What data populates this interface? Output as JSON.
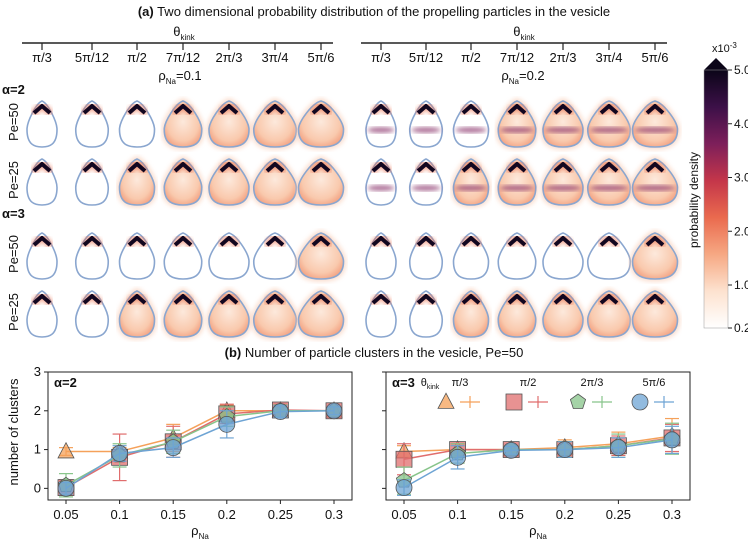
{
  "panel_a": {
    "title_bold": "(a)",
    "title_text": " Two dimensional probability distribution of the propelling particles in the vesicle",
    "theta_label": "θ",
    "theta_sub": "kink",
    "ticks": [
      "π/3",
      "5π/12",
      "π/2",
      "7π/12",
      "2π/3",
      "3π/4",
      "5π/6"
    ],
    "rho_left_main": "ρ",
    "rho_left_sub": "Na",
    "rho_left_val": "=0.1",
    "rho_right_main": "ρ",
    "rho_right_sub": "Na",
    "rho_right_val": "=0.2",
    "alpha_groups": [
      "α=2",
      "α=3"
    ],
    "pe_rows": [
      "Pe=50",
      "Pe=25",
      "Pe=50",
      "Pe=25"
    ]
  },
  "colorbar": {
    "label": "probability density",
    "exponent_base": "x10",
    "exponent_power": "-3",
    "ticks": [
      "5.0",
      "4.0",
      "3.0",
      "2.0",
      "1.0",
      "0.2"
    ],
    "colors": [
      "#ffffff",
      "#fde2cf",
      "#f6a883",
      "#ea6a4e",
      "#c4364a",
      "#7d1f5a",
      "#3c1048",
      "#0b0518"
    ]
  },
  "panel_b": {
    "title_bold": "(b)",
    "title_text": " Number of particle clusters in the vesicle, Pe=50",
    "ylabel": "number of clusters",
    "legend_title_main": "θ",
    "legend_title_sub": "kink"
  },
  "chart_data": [
    {
      "type": "scatter",
      "panel": "α=2",
      "title": "α=2",
      "xlabel": "ρNa",
      "ylabel": "number of clusters",
      "x": [
        0.05,
        0.1,
        0.15,
        0.2,
        0.25,
        0.3
      ],
      "xticks": [
        "0.05",
        "0.1",
        "0.15",
        "0.2",
        "0.25",
        "0.3"
      ],
      "ylim": [
        -0.3,
        3
      ],
      "yticks": [
        0,
        1,
        2,
        3
      ],
      "series": [
        {
          "name": "π/3",
          "marker": "triangle",
          "color": "#f5a15a",
          "y": [
            0.95,
            0.95,
            1.3,
            2.0,
            2.0,
            2.0
          ],
          "err": [
            0.1,
            0.1,
            0.35,
            0.15,
            0.1,
            0.05
          ]
        },
        {
          "name": "π/2",
          "marker": "square",
          "color": "#e06d6d",
          "y": [
            0.02,
            0.8,
            1.2,
            1.92,
            2.02,
            2.0
          ],
          "err": [
            0.2,
            0.6,
            0.4,
            0.25,
            0.15,
            0.1
          ]
        },
        {
          "name": "2π/3",
          "marker": "pentagon",
          "color": "#87c48a",
          "y": [
            0.08,
            0.85,
            1.2,
            1.85,
            2.0,
            2.0
          ],
          "err": [
            0.3,
            0.3,
            0.3,
            0.25,
            0.15,
            0.1
          ]
        },
        {
          "name": "5π/6",
          "marker": "circle",
          "color": "#6ea4d4",
          "y": [
            0.0,
            0.9,
            1.05,
            1.65,
            1.98,
            2.0
          ],
          "err": [
            0.15,
            0.2,
            0.25,
            0.35,
            0.15,
            0.1
          ]
        }
      ]
    },
    {
      "type": "scatter",
      "panel": "α=3",
      "title": "α=3",
      "xlabel": "ρNa",
      "ylabel": "number of clusters",
      "x": [
        0.05,
        0.1,
        0.15,
        0.2,
        0.25,
        0.3
      ],
      "xticks": [
        "0.05",
        "0.1",
        "0.15",
        "0.2",
        "0.25",
        "0.3"
      ],
      "ylim": [
        -0.3,
        3
      ],
      "yticks": [
        0,
        1,
        2,
        3
      ],
      "legend": "top-right",
      "series": [
        {
          "name": "π/3",
          "marker": "triangle",
          "color": "#f5a15a",
          "y": [
            0.95,
            1.0,
            1.0,
            1.05,
            1.15,
            1.35
          ],
          "err": [
            0.15,
            0.1,
            0.1,
            0.2,
            0.3,
            0.45
          ]
        },
        {
          "name": "π/2",
          "marker": "square",
          "color": "#e06d6d",
          "y": [
            0.75,
            1.0,
            1.0,
            1.0,
            1.1,
            1.3
          ],
          "err": [
            0.4,
            0.15,
            0.1,
            0.2,
            0.25,
            0.35
          ]
        },
        {
          "name": "2π/3",
          "marker": "pentagon",
          "color": "#87c48a",
          "y": [
            0.2,
            0.9,
            1.0,
            1.0,
            1.1,
            1.28
          ],
          "err": [
            0.35,
            0.25,
            0.1,
            0.2,
            0.3,
            0.4
          ]
        },
        {
          "name": "5π/6",
          "marker": "circle",
          "color": "#6ea4d4",
          "y": [
            0.02,
            0.8,
            0.98,
            1.0,
            1.05,
            1.25
          ],
          "err": [
            0.2,
            0.3,
            0.1,
            0.2,
            0.25,
            0.35
          ]
        }
      ]
    }
  ]
}
